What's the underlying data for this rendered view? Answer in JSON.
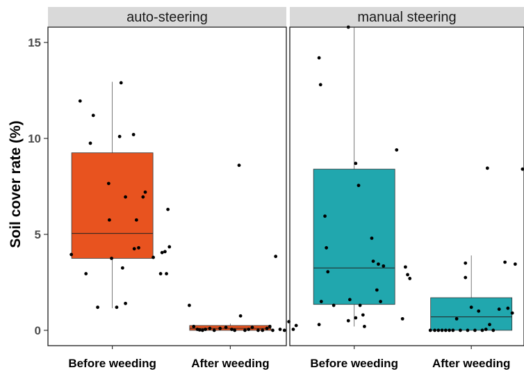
{
  "chart_data": {
    "type": "boxplot",
    "ylabel": "Soil cover rate (%)",
    "ylim": [
      -0.8,
      15.8
    ],
    "yticks": [
      0,
      5,
      10,
      15
    ],
    "categories": [
      "Before weeding",
      "After weeding"
    ],
    "panels": [
      {
        "title": "auto-steering",
        "boxes": [
          {
            "category": "Before weeding",
            "color": "#E8531F",
            "q1": 3.75,
            "median": 5.05,
            "q3": 9.25,
            "whisker_low": 1.15,
            "whisker_high": 12.95,
            "points": [
              [
                -0.56,
                3.95
              ],
              [
                -0.44,
                11.95
              ],
              [
                -0.36,
                2.95
              ],
              [
                -0.3,
                9.75
              ],
              [
                -0.26,
                11.2
              ],
              [
                -0.2,
                1.2
              ],
              [
                -0.05,
                7.65
              ],
              [
                -0.04,
                5.75
              ],
              [
                -0.01,
                3.75
              ],
              [
                0.06,
                1.2
              ],
              [
                0.1,
                10.1
              ],
              [
                0.12,
                12.9
              ],
              [
                0.14,
                3.25
              ],
              [
                0.18,
                6.95
              ],
              [
                0.18,
                1.4
              ],
              [
                0.29,
                10.2
              ],
              [
                0.3,
                4.25
              ],
              [
                0.33,
                5.75
              ],
              [
                0.36,
                4.3
              ],
              [
                0.42,
                6.95
              ],
              [
                0.45,
                7.2
              ],
              [
                0.56,
                3.8
              ],
              [
                0.66,
                2.95
              ],
              [
                0.68,
                4.05
              ],
              [
                0.72,
                4.1
              ],
              [
                0.74,
                2.95
              ],
              [
                0.76,
                6.3
              ],
              [
                0.78,
                4.35
              ]
            ]
          },
          {
            "category": "After weeding",
            "color": "#E8531F",
            "q1": 0.0,
            "median": 0.1,
            "q3": 0.25,
            "whisker_low": 0.0,
            "whisker_high": 0.35,
            "points": [
              [
                -0.56,
                1.3
              ],
              [
                -0.5,
                0.2
              ],
              [
                -0.45,
                0.05
              ],
              [
                -0.42,
                0.02
              ],
              [
                -0.38,
                0.0
              ],
              [
                -0.34,
                0.05
              ],
              [
                -0.28,
                0.1
              ],
              [
                -0.22,
                0.0
              ],
              [
                -0.14,
                0.1
              ],
              [
                -0.06,
                0.15
              ],
              [
                0.02,
                0.05
              ],
              [
                0.06,
                0.0
              ],
              [
                0.12,
                8.6
              ],
              [
                0.14,
                0.75
              ],
              [
                0.2,
                0.0
              ],
              [
                0.25,
                0.05
              ],
              [
                0.3,
                0.15
              ],
              [
                0.38,
                0.0
              ],
              [
                0.44,
                0.0
              ],
              [
                0.5,
                0.1
              ],
              [
                0.54,
                0.2
              ],
              [
                0.58,
                0.0
              ],
              [
                0.62,
                3.85
              ],
              [
                0.68,
                0.05
              ],
              [
                0.74,
                0.0
              ],
              [
                0.8,
                0.45
              ],
              [
                0.86,
                0.05
              ],
              [
                0.9,
                0.25
              ]
            ]
          }
        ]
      },
      {
        "title": "manual steering",
        "boxes": [
          {
            "category": "Before weeding",
            "color": "#21A7AE",
            "q1": 1.35,
            "median": 3.25,
            "q3": 8.4,
            "whisker_low": 0.2,
            "whisker_high": 15.8,
            "points": [
              [
                -0.48,
                0.3
              ],
              [
                -0.48,
                14.2
              ],
              [
                -0.46,
                12.8
              ],
              [
                -0.45,
                1.5
              ],
              [
                -0.4,
                5.95
              ],
              [
                -0.38,
                4.3
              ],
              [
                -0.36,
                3.05
              ],
              [
                -0.28,
                1.3
              ],
              [
                -0.08,
                15.8
              ],
              [
                -0.08,
                0.5
              ],
              [
                -0.06,
                1.6
              ],
              [
                0.02,
                8.7
              ],
              [
                0.02,
                0.65
              ],
              [
                0.06,
                7.55
              ],
              [
                0.08,
                1.3
              ],
              [
                0.12,
                0.8
              ],
              [
                0.14,
                0.2
              ],
              [
                0.24,
                4.8
              ],
              [
                0.26,
                3.6
              ],
              [
                0.31,
                2.1
              ],
              [
                0.33,
                3.45
              ],
              [
                0.36,
                1.5
              ],
              [
                0.4,
                3.35
              ],
              [
                0.58,
                9.4
              ],
              [
                0.66,
                0.6
              ],
              [
                0.7,
                3.3
              ],
              [
                0.73,
                2.9
              ],
              [
                0.76,
                2.7
              ]
            ]
          },
          {
            "category": "After weeding",
            "color": "#21A7AE",
            "q1": 0.0,
            "median": 0.7,
            "q3": 1.7,
            "whisker_low": 0.0,
            "whisker_high": 3.9,
            "points": [
              [
                -0.56,
                0.0
              ],
              [
                -0.5,
                0.0
              ],
              [
                -0.45,
                0.0
              ],
              [
                -0.4,
                0.0
              ],
              [
                -0.35,
                0.0
              ],
              [
                -0.3,
                0.0
              ],
              [
                -0.25,
                0.0
              ],
              [
                -0.2,
                0.6
              ],
              [
                -0.15,
                0.0
              ],
              [
                -0.08,
                3.5
              ],
              [
                -0.08,
                2.75
              ],
              [
                -0.05,
                0.0
              ],
              [
                0.0,
                1.2
              ],
              [
                0.05,
                0.0
              ],
              [
                0.1,
                1.0
              ],
              [
                0.15,
                0.0
              ],
              [
                0.2,
                0.05
              ],
              [
                0.22,
                8.45
              ],
              [
                0.25,
                0.3
              ],
              [
                0.3,
                0.0
              ],
              [
                0.38,
                1.1
              ],
              [
                0.46,
                3.55
              ],
              [
                0.5,
                1.15
              ],
              [
                0.56,
                0.9
              ],
              [
                0.6,
                3.45
              ],
              [
                0.7,
                8.4
              ],
              [
                0.75,
                1.05
              ],
              [
                0.8,
                1.8
              ]
            ]
          }
        ]
      }
    ]
  }
}
